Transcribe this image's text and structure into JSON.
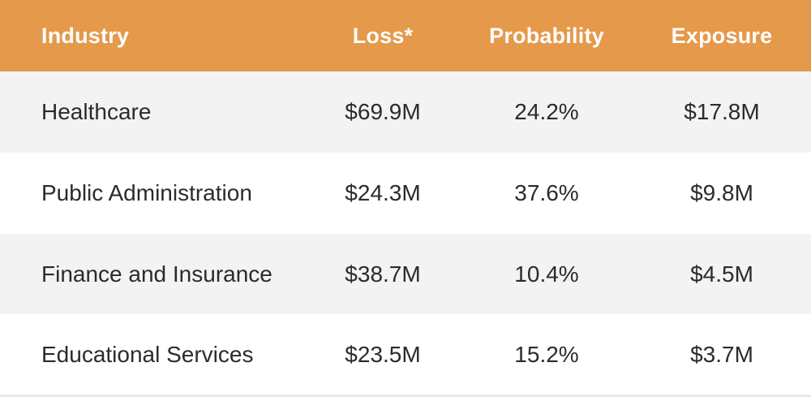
{
  "table": {
    "columns": [
      "Industry",
      "Loss*",
      "Probability",
      "Exposure"
    ],
    "rows": [
      {
        "industry": "Healthcare",
        "loss": "$69.9M",
        "probability": "24.2%",
        "exposure": "$17.8M"
      },
      {
        "industry": "Public Administration",
        "loss": "$24.3M",
        "probability": "37.6%",
        "exposure": "$9.8M"
      },
      {
        "industry": "Finance and Insurance",
        "loss": "$38.7M",
        "probability": "10.4%",
        "exposure": "$4.5M"
      },
      {
        "industry": "Educational Services",
        "loss": "$23.5M",
        "probability": "15.2%",
        "exposure": "$3.7M"
      }
    ]
  },
  "colors": {
    "header_bg": "#e5994b",
    "header_text": "#ffffff",
    "row_shade": "#f3f3f3",
    "row_plain": "#ffffff",
    "body_text": "#2b2b2b"
  }
}
